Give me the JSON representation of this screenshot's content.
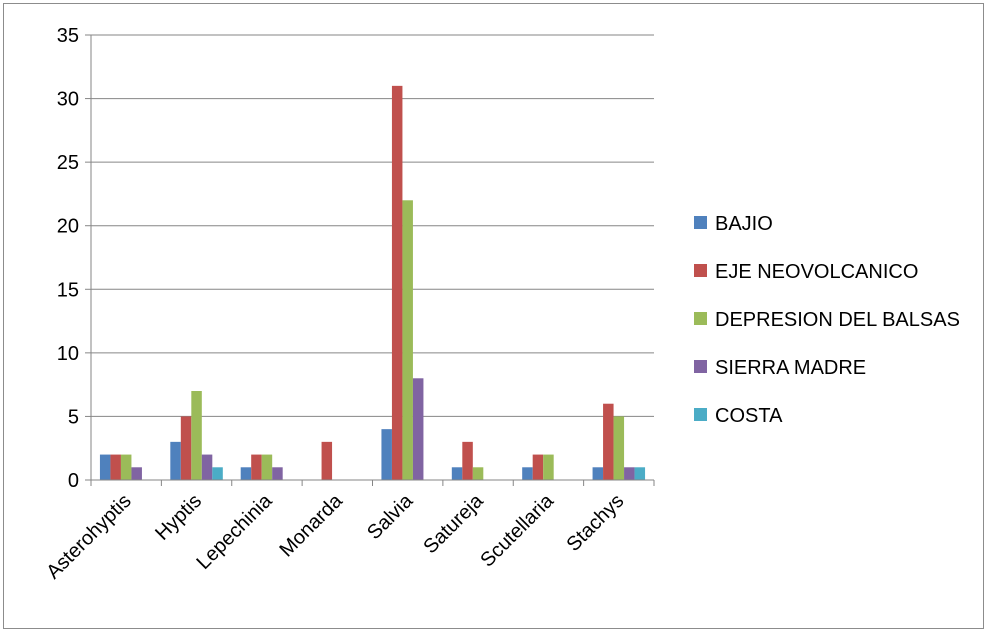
{
  "chart_data": {
    "type": "bar",
    "categories": [
      "Asterohyptis",
      "Hyptis",
      "Lepechinia",
      "Monarda",
      "Salvia",
      "Satureja",
      "Scutellaria",
      "Stachys"
    ],
    "series": [
      {
        "name": "BAJIO",
        "color": "#4f81bd",
        "values": [
          2,
          3,
          1,
          0,
          4,
          1,
          1,
          1
        ]
      },
      {
        "name": "EJE NEOVOLCANICO",
        "color": "#c0504d",
        "values": [
          2,
          5,
          2,
          3,
          31,
          3,
          2,
          6
        ]
      },
      {
        "name": "DEPRESION DEL BALSAS",
        "color": "#9bbb59",
        "values": [
          2,
          7,
          2,
          0,
          22,
          1,
          2,
          5
        ]
      },
      {
        "name": "SIERRA MADRE",
        "color": "#8064a2",
        "values": [
          1,
          2,
          1,
          0,
          8,
          0,
          0,
          1
        ]
      },
      {
        "name": "COSTA",
        "color": "#4bacc6",
        "values": [
          0,
          1,
          0,
          0,
          0,
          0,
          0,
          1
        ]
      }
    ],
    "y_ticks": [
      "0",
      "5",
      "10",
      "15",
      "20",
      "25",
      "30",
      "35"
    ],
    "ylim": [
      0,
      35
    ],
    "grid": true,
    "legend": "right",
    "title": "",
    "xlabel": "",
    "ylabel": ""
  }
}
